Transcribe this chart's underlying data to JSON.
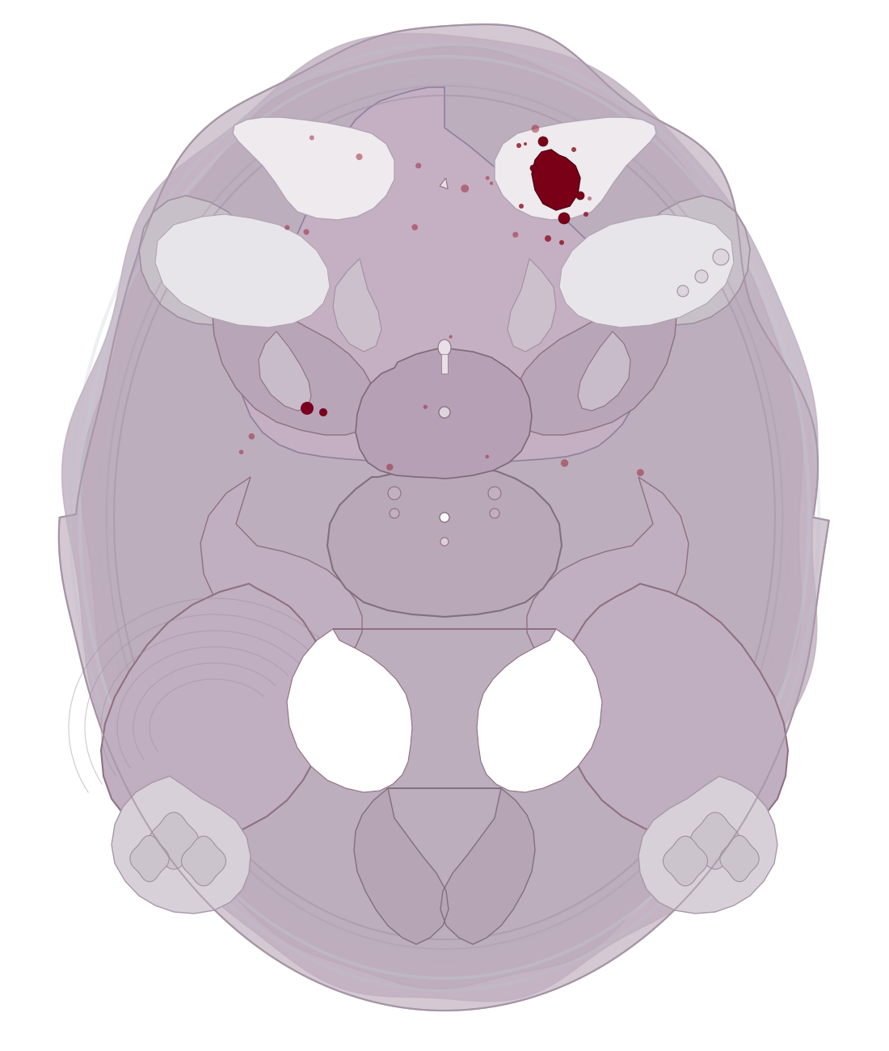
{
  "bg": "#ffffff",
  "outer_brain_fill": "#d4c8d2",
  "outer_brain_edge": "#b0a0b0",
  "cortex_fill": "#c8bcc6",
  "white_matter": "#e8e4e8",
  "thalamus_fill": "#c0aec0",
  "thalamus_edge": "#907080",
  "lateral_vent_fill": "#eeeaee",
  "lateral_vent_edge": "#b0a0b0",
  "basal_ganglia_fill": "#b8a8b8",
  "basal_ganglia_edge": "#907080",
  "midbrain_fill": "#b8a8b8",
  "midbrain_edge": "#807080",
  "fourth_vent_fill": "#ffffff",
  "cerebellum_fill": "#c4b8c4",
  "cerebellum_edge": "#9888a0",
  "cerebellar_wm_fill": "#ddd8de",
  "blood_fill": "#7a0018",
  "blood_edge": "#500010",
  "meninges_color": "#b8c8d8",
  "figsize": [
    11.0,
    13.0
  ],
  "dpi": 100
}
